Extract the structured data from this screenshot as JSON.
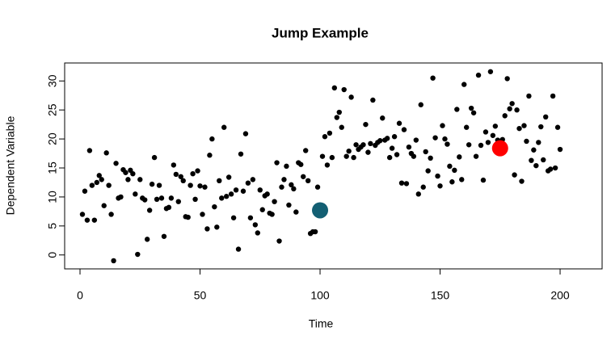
{
  "chart_data": {
    "type": "scatter",
    "title": "Jump Example",
    "xlabel": "Time",
    "ylabel": "Dependent Variable",
    "xlim": [
      -6.4,
      217.5
    ],
    "ylim": [
      -2.4,
      33.1
    ],
    "xticks": [
      0,
      50,
      100,
      150,
      200
    ],
    "yticks": [
      0,
      5,
      10,
      15,
      20,
      25,
      30
    ],
    "series": [
      {
        "color": "#000000",
        "marker_size": 3.2,
        "x": [
          1,
          2,
          3,
          4,
          5,
          6,
          7,
          8,
          9,
          10,
          11,
          12,
          13,
          14,
          15,
          16,
          17,
          18,
          19,
          20,
          21,
          22,
          23,
          24,
          25,
          26,
          27,
          28,
          29,
          30,
          31,
          32,
          33,
          34,
          35,
          36,
          37,
          38,
          39,
          40,
          41,
          42,
          43,
          44,
          45,
          46,
          47,
          48,
          49,
          50,
          51,
          52,
          53,
          54,
          55,
          56,
          57,
          58,
          59,
          60,
          61,
          62,
          63,
          64,
          65,
          66,
          67,
          68,
          69,
          70,
          71,
          72,
          73,
          74,
          75,
          76,
          77,
          78,
          79,
          80,
          81,
          82,
          83,
          84,
          85,
          86,
          87,
          88,
          89,
          90,
          91,
          92,
          93,
          94,
          95,
          96,
          97,
          98,
          99,
          100,
          101,
          102,
          103,
          104,
          105,
          106,
          107,
          108,
          109,
          110,
          111,
          112,
          113,
          114,
          115,
          116,
          117,
          118,
          119,
          120,
          121,
          122,
          123,
          124,
          125,
          126,
          127,
          128,
          129,
          130,
          131,
          132,
          133,
          134,
          135,
          136,
          137,
          138,
          139,
          140,
          141,
          142,
          143,
          144,
          145,
          146,
          147,
          148,
          149,
          150,
          151,
          152,
          153,
          154,
          155,
          156,
          157,
          158,
          159,
          160,
          161,
          162,
          163,
          164,
          165,
          166,
          167,
          168,
          169,
          170,
          171,
          172,
          173,
          174,
          175,
          176,
          177,
          178,
          179,
          180,
          181,
          182,
          183,
          184,
          185,
          186,
          187,
          188,
          189,
          190,
          191,
          192,
          193,
          194,
          195,
          196,
          197,
          198,
          199,
          200
        ],
        "values": [
          7,
          11,
          6,
          18,
          12,
          6,
          12.5,
          13.7,
          13,
          8.5,
          17.6,
          12,
          7,
          -1,
          15.8,
          9.8,
          10,
          14.7,
          14.2,
          13,
          14.6,
          14,
          10.5,
          0.1,
          13,
          9.8,
          9.5,
          2.7,
          7.7,
          12.2,
          16.8,
          9.6,
          12,
          9.8,
          3.2,
          8,
          8.2,
          9.8,
          15.5,
          13.9,
          9.2,
          13.5,
          12.8,
          6.6,
          6.5,
          12,
          14,
          9.6,
          14.5,
          11.9,
          7,
          11.7,
          4.5,
          17.2,
          20,
          8.3,
          4.8,
          12.8,
          9.8,
          22,
          10.1,
          13.4,
          10.5,
          6.4,
          11.2,
          1,
          17.4,
          11,
          20.9,
          12.4,
          6.4,
          13,
          5.2,
          3.8,
          11.2,
          7.8,
          10.2,
          10.5,
          7.2,
          7,
          9.2,
          15.9,
          2.4,
          11.7,
          13,
          15.3,
          8.6,
          12.1,
          11.4,
          7.4,
          15.9,
          15.6,
          13.5,
          18,
          12.8,
          3.7,
          4,
          4,
          11.7,
          7.7,
          17,
          20.4,
          15.5,
          21,
          16.8,
          28.8,
          23.7,
          24.6,
          22,
          28.5,
          17,
          17.9,
          27.2,
          16.8,
          19,
          18.2,
          18.6,
          19,
          22.5,
          17.7,
          19.2,
          26.7,
          18.9,
          19.4,
          19.7,
          23.6,
          19.8,
          20.1,
          16.8,
          18.4,
          20.4,
          17.3,
          22.7,
          12.4,
          21.6,
          12.3,
          18.6,
          17.5,
          17,
          19.8,
          10.5,
          25.9,
          11.7,
          17.8,
          14.5,
          16.7,
          30.5,
          20.2,
          13.6,
          11.9,
          22.3,
          20,
          19.1,
          15.3,
          12.6,
          14.6,
          25.1,
          16.9,
          13,
          29.4,
          22,
          19,
          25.3,
          24.5,
          17,
          31,
          18.9,
          12.9,
          21.2,
          19.4,
          31.6,
          20.6,
          22.2,
          19.8,
          18.4,
          19.9,
          24,
          30.4,
          25.2,
          26.1,
          13.8,
          25,
          21.8,
          12.7,
          22.3,
          19.6,
          27.4,
          16.3,
          18.1,
          15.4,
          19.4,
          22.1,
          16.4,
          23.8,
          14.5,
          14.8,
          27.4,
          15,
          22,
          18.2
        ]
      },
      {
        "color": "#135f73",
        "marker_size": 10,
        "x": [
          100
        ],
        "values": [
          7.7
        ]
      },
      {
        "color": "#ff0000",
        "marker_size": 10,
        "x": [
          175
        ],
        "values": [
          18.4
        ]
      }
    ]
  }
}
